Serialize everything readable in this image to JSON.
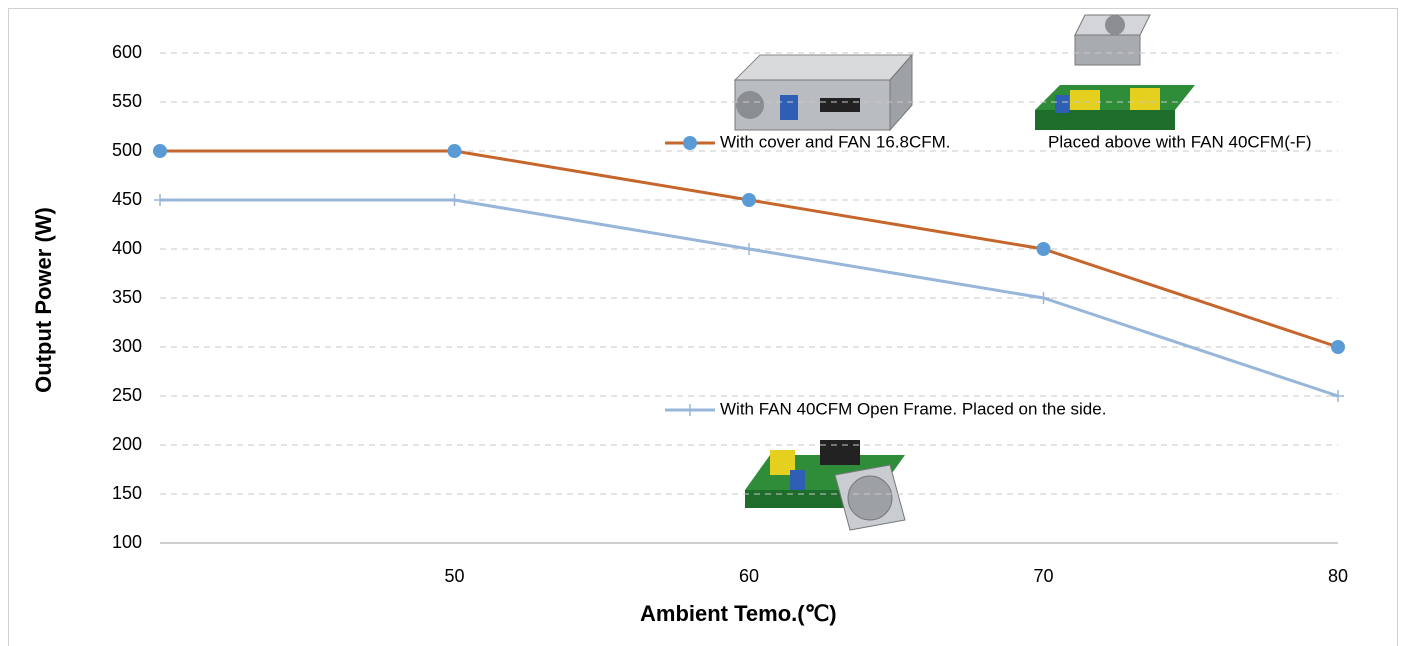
{
  "chart_data": {
    "type": "line",
    "x": [
      40,
      50,
      60,
      70,
      80
    ],
    "xlim": [
      40,
      80
    ],
    "xticks": [
      50,
      60,
      70,
      80
    ],
    "ylim": [
      100,
      600
    ],
    "yticks": [
      100,
      150,
      200,
      250,
      300,
      350,
      400,
      450,
      500,
      550,
      600
    ],
    "grid": true,
    "x_label": "Ambient Temo.(℃)",
    "y_label": "Output  Power (W)",
    "annotation": "Placed above with FAN 40CFM(-F)",
    "series": [
      {
        "name": "With cover and FAN 16.8CFM.",
        "color": "#c5672d",
        "marker": "circle",
        "values": [
          500,
          500,
          450,
          400,
          300
        ]
      },
      {
        "name": "With FAN 40CFM Open Frame. Placed on the side.",
        "color": "#98b6da",
        "marker": "plus",
        "values": [
          450,
          450,
          400,
          350,
          250
        ]
      }
    ]
  }
}
